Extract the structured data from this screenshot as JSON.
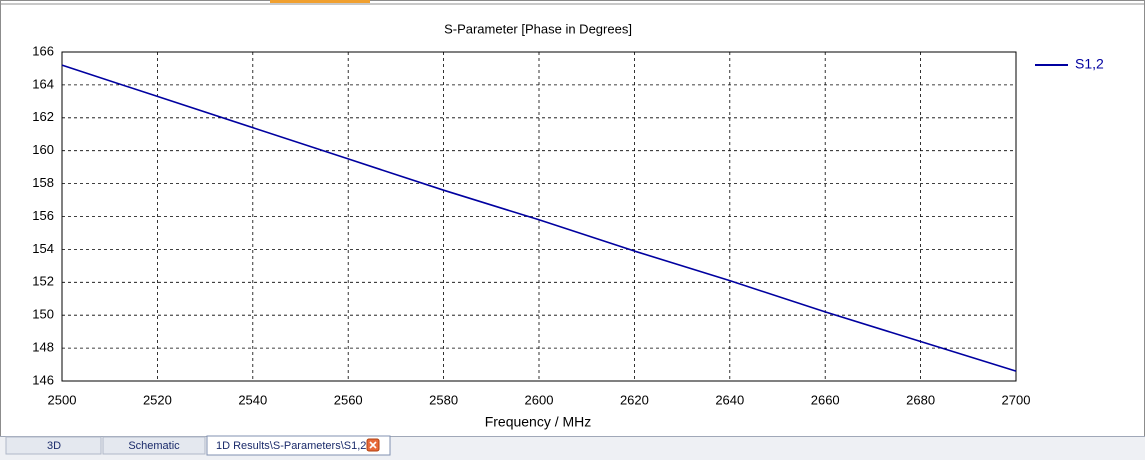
{
  "chart_data": {
    "type": "line",
    "title": "S-Parameter [Phase in Degrees]",
    "xlabel": "Frequency / MHz",
    "x": [
      2500,
      2520,
      2540,
      2560,
      2580,
      2600,
      2620,
      2640,
      2660,
      2680,
      2700
    ],
    "series": [
      {
        "name": "S1,2",
        "color": "#0000a0",
        "values": [
          165.2,
          163.3,
          161.4,
          159.5,
          157.6,
          155.8,
          153.9,
          152.1,
          150.2,
          148.4,
          146.6
        ]
      }
    ],
    "xlim": [
      2500,
      2700
    ],
    "xticks": [
      2500,
      2520,
      2540,
      2560,
      2580,
      2600,
      2620,
      2640,
      2660,
      2680,
      2700
    ],
    "ylim": [
      146,
      166
    ],
    "yticks": [
      146,
      148,
      150,
      152,
      154,
      156,
      158,
      160,
      162,
      164,
      166
    ],
    "grid": true,
    "legend": "right"
  },
  "tabs": [
    "3D",
    "Schematic",
    "1D Results\\S-Parameters\\S1,2"
  ]
}
